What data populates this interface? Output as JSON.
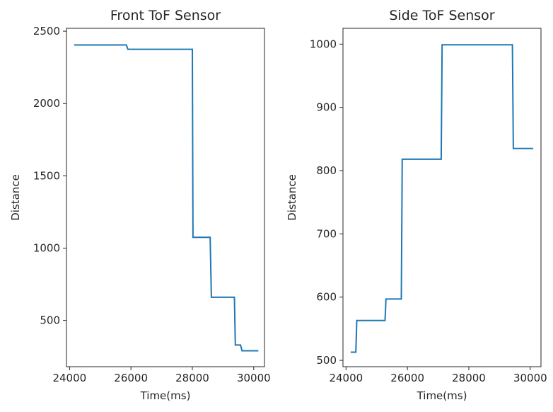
{
  "chart_data": [
    {
      "type": "line",
      "title": "Front ToF Sensor",
      "xlabel": "Time(ms)",
      "ylabel": "Distance",
      "xlim": [
        23900,
        30350
      ],
      "ylim": [
        180,
        2520
      ],
      "xticks": [
        24000,
        26000,
        28000,
        30000
      ],
      "yticks": [
        500,
        1000,
        1500,
        2000,
        2500
      ],
      "color": "#1f77b4",
      "grid": false,
      "series": [
        {
          "x": [
            24150,
            25850,
            25900,
            28000,
            28020,
            28580,
            28620,
            29370,
            29400,
            29570,
            29620,
            30150
          ],
          "y": [
            2405,
            2405,
            2375,
            2375,
            1075,
            1075,
            660,
            660,
            330,
            330,
            290,
            290
          ]
        }
      ]
    },
    {
      "type": "line",
      "title": "Side ToF Sensor",
      "xlabel": "Time(ms)",
      "ylabel": "Distance",
      "xlim": [
        23900,
        30350
      ],
      "ylim": [
        490,
        1025
      ],
      "xticks": [
        24000,
        26000,
        28000,
        30000
      ],
      "yticks": [
        500,
        600,
        700,
        800,
        900,
        1000
      ],
      "color": "#1f77b4",
      "grid": false,
      "series": [
        {
          "x": [
            24150,
            24320,
            24350,
            25270,
            25300,
            25800,
            25830,
            27100,
            27130,
            29420,
            29450,
            30100
          ],
          "y": [
            513,
            513,
            563,
            563,
            597,
            597,
            818,
            818,
            999,
            999,
            835,
            835
          ]
        }
      ]
    }
  ]
}
